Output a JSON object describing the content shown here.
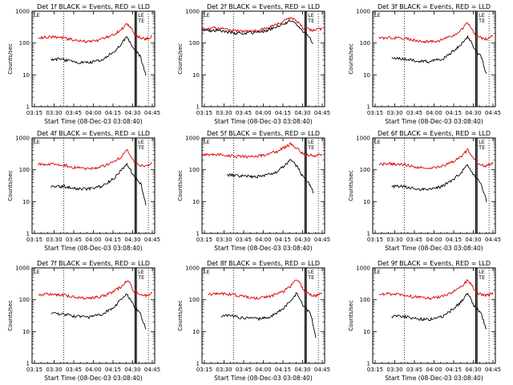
{
  "figure": {
    "x_tick_labels": [
      "03:15",
      "03:30",
      "03:45",
      "04:00",
      "04:15",
      "04:30",
      "04:45"
    ],
    "y_tick_labels": [
      "1",
      "10",
      "100",
      "1000"
    ],
    "colors": {
      "events": "#000000",
      "lld": "#dd0000"
    }
  },
  "chart_data": [
    {
      "type": "line",
      "title": "Det 1f BLACK = Events, RED = LLD",
      "xlabel": "Start Time (08-Dec-03 03:08:40)",
      "ylabel": "Counts/sec",
      "xlim": [
        0,
        97
      ],
      "ylim": [
        1,
        1000
      ],
      "yscale": "log",
      "x": [
        5,
        15,
        25,
        35,
        45,
        55,
        65,
        70,
        75,
        78,
        80,
        82,
        84,
        86,
        87,
        90,
        95
      ],
      "series": [
        {
          "name": "LLD",
          "color": "#dd0000",
          "values": [
            150,
            155,
            145,
            120,
            110,
            130,
            190,
            260,
            400,
            320,
            210,
            180,
            160,
            145,
            140,
            135,
            165
          ]
        },
        {
          "name": "Events",
          "color": "#000000",
          "values": [
            null,
            32,
            30,
            25,
            24,
            30,
            55,
            90,
            155,
            100,
            65,
            55,
            45,
            36,
            25,
            10,
            null
          ]
        }
      ],
      "markers": {
        "dotted_x": [
          25,
          92
        ],
        "solid_x": [
          81.5,
          82.5
        ],
        "labels": [
          "LE",
          "LE",
          "TE"
        ]
      }
    },
    {
      "type": "line",
      "title": "Det 2f BLACK = Events, RED = LLD",
      "xlabel": "Start Time (08-Dec-03 03:08:40)",
      "ylabel": "Counts/sec",
      "xlim": [
        0,
        97
      ],
      "ylim": [
        1,
        1000
      ],
      "yscale": "log",
      "x": [
        0,
        10,
        20,
        30,
        40,
        50,
        60,
        70,
        75,
        78,
        80,
        82,
        85,
        88,
        90,
        95
      ],
      "series": [
        {
          "name": "LLD",
          "color": "#dd0000",
          "values": [
            280,
            300,
            260,
            230,
            240,
            280,
            400,
            610,
            480,
            360,
            300,
            290,
            270,
            250,
            260,
            290
          ]
        },
        {
          "name": "Events",
          "color": "#000000",
          "values": [
            240,
            250,
            220,
            200,
            210,
            240,
            340,
            490,
            400,
            260,
            230,
            210,
            150,
            90,
            null,
            null
          ]
        }
      ],
      "markers": {
        "dotted_x": [
          25,
          92
        ],
        "solid_x": [
          81.5,
          82.5
        ],
        "labels": [
          "LE",
          "LE",
          "TE"
        ]
      }
    },
    {
      "type": "line",
      "title": "Det 3f BLACK = Events, RED = LLD",
      "xlabel": "Start Time (08-Dec-03 03:08:40)",
      "ylabel": "Counts/sec",
      "xlim": [
        0,
        97
      ],
      "ylim": [
        1,
        1000
      ],
      "yscale": "log",
      "x": [
        5,
        15,
        25,
        35,
        45,
        55,
        65,
        70,
        75,
        78,
        80,
        82,
        84,
        86,
        87,
        90,
        95
      ],
      "series": [
        {
          "name": "LLD",
          "color": "#dd0000",
          "values": [
            145,
            150,
            140,
            120,
            110,
            125,
            190,
            250,
            430,
            300,
            200,
            170,
            155,
            145,
            140,
            135,
            160
          ]
        },
        {
          "name": "Events",
          "color": "#000000",
          "values": [
            null,
            35,
            32,
            28,
            26,
            32,
            60,
            95,
            160,
            105,
            70,
            55,
            45,
            36,
            25,
            10,
            null
          ]
        }
      ],
      "markers": {
        "dotted_x": [
          25,
          92
        ],
        "solid_x": [
          81.5,
          82.5
        ],
        "labels": [
          "LE",
          "LE",
          "TE"
        ]
      }
    },
    {
      "type": "line",
      "title": "Det 4f BLACK = Events, RED = LLD",
      "xlabel": "Start Time (08-Dec-03 03:08:40)",
      "ylabel": "Counts/sec",
      "xlim": [
        0,
        97
      ],
      "ylim": [
        1,
        1000
      ],
      "yscale": "log",
      "x": [
        5,
        15,
        25,
        35,
        45,
        55,
        65,
        70,
        75,
        78,
        80,
        82,
        84,
        86,
        87,
        90,
        95
      ],
      "series": [
        {
          "name": "LLD",
          "color": "#dd0000",
          "values": [
            150,
            150,
            140,
            115,
            105,
            125,
            185,
            250,
            420,
            300,
            200,
            170,
            155,
            140,
            140,
            135,
            160
          ]
        },
        {
          "name": "Events",
          "color": "#000000",
          "values": [
            null,
            30,
            30,
            26,
            25,
            30,
            55,
            90,
            150,
            95,
            65,
            55,
            45,
            36,
            25,
            8,
            null
          ]
        }
      ],
      "markers": {
        "dotted_x": [
          25,
          92
        ],
        "solid_x": [
          81.5,
          82.5
        ],
        "labels": [
          "LE",
          "LE",
          "TE"
        ]
      }
    },
    {
      "type": "line",
      "title": "Det 5f BLACK = Events, RED = LLD",
      "xlabel": "Start Time (08-Dec-03 03:08:40)",
      "ylabel": "Counts/sec",
      "xlim": [
        0,
        97
      ],
      "ylim": [
        1,
        1000
      ],
      "yscale": "log",
      "x": [
        0,
        10,
        20,
        30,
        40,
        50,
        60,
        70,
        75,
        78,
        80,
        82,
        85,
        88,
        90,
        95
      ],
      "series": [
        {
          "name": "LLD",
          "color": "#dd0000",
          "values": [
            290,
            300,
            280,
            260,
            260,
            290,
            390,
            640,
            500,
            380,
            320,
            300,
            290,
            280,
            280,
            300
          ]
        },
        {
          "name": "Events",
          "color": "#000000",
          "values": [
            null,
            null,
            70,
            65,
            60,
            65,
            90,
            200,
            130,
            80,
            60,
            50,
            35,
            20,
            null,
            null
          ]
        }
      ],
      "markers": {
        "dotted_x": [
          25,
          92
        ],
        "solid_x": [
          81.5,
          82.5
        ],
        "labels": [
          "LE",
          "LE",
          "TE"
        ]
      }
    },
    {
      "type": "line",
      "title": "Det 6f BLACK = Events, RED = LLD",
      "xlabel": "Start Time (08-Dec-03 03:08:40)",
      "ylabel": "Counts/sec",
      "xlim": [
        0,
        97
      ],
      "ylim": [
        1,
        1000
      ],
      "yscale": "log",
      "x": [
        5,
        15,
        25,
        35,
        45,
        55,
        65,
        70,
        75,
        78,
        80,
        82,
        84,
        86,
        87,
        90,
        95
      ],
      "series": [
        {
          "name": "LLD",
          "color": "#dd0000",
          "values": [
            150,
            155,
            145,
            120,
            110,
            130,
            190,
            260,
            420,
            310,
            210,
            180,
            160,
            145,
            140,
            135,
            165
          ]
        },
        {
          "name": "Events",
          "color": "#000000",
          "values": [
            null,
            30,
            30,
            25,
            24,
            30,
            55,
            85,
            140,
            95,
            65,
            55,
            45,
            36,
            25,
            10,
            null
          ]
        }
      ],
      "markers": {
        "dotted_x": [
          25,
          92
        ],
        "solid_x": [
          81.5,
          82.5
        ],
        "labels": [
          "LE",
          "LE",
          "TE"
        ]
      }
    },
    {
      "type": "line",
      "title": "Det 7f BLACK = Events, RED = LLD",
      "xlabel": "Start Time (08-Dec-03 03:08:40)",
      "ylabel": "Counts/sec",
      "xlim": [
        0,
        97
      ],
      "ylim": [
        1,
        1000
      ],
      "yscale": "log",
      "x": [
        5,
        15,
        25,
        35,
        45,
        55,
        65,
        70,
        75,
        78,
        80,
        82,
        84,
        86,
        87,
        90,
        95
      ],
      "series": [
        {
          "name": "LLD",
          "color": "#dd0000",
          "values": [
            145,
            150,
            140,
            120,
            110,
            125,
            185,
            250,
            410,
            300,
            200,
            170,
            155,
            140,
            140,
            135,
            160
          ]
        },
        {
          "name": "Events",
          "color": "#000000",
          "values": [
            null,
            38,
            35,
            30,
            28,
            34,
            60,
            95,
            155,
            100,
            70,
            55,
            45,
            36,
            25,
            12,
            null
          ]
        }
      ],
      "markers": {
        "dotted_x": [
          25,
          92
        ],
        "solid_x": [
          81.5,
          82.5
        ],
        "labels": [
          "LE",
          "LE",
          "TE"
        ]
      }
    },
    {
      "type": "line",
      "title": "Det 8f BLACK = Events, RED = LLD",
      "xlabel": "Start Time (08-Dec-03 03:08:40)",
      "ylabel": "Counts/sec",
      "xlim": [
        0,
        97
      ],
      "ylim": [
        1,
        1000
      ],
      "yscale": "log",
      "x": [
        5,
        15,
        25,
        35,
        45,
        55,
        65,
        70,
        75,
        78,
        80,
        82,
        84,
        86,
        87,
        90,
        95
      ],
      "series": [
        {
          "name": "LLD",
          "color": "#dd0000",
          "values": [
            150,
            155,
            145,
            120,
            110,
            130,
            190,
            260,
            420,
            310,
            210,
            180,
            160,
            145,
            140,
            135,
            165
          ]
        },
        {
          "name": "Events",
          "color": "#000000",
          "values": [
            null,
            32,
            30,
            26,
            25,
            30,
            55,
            90,
            165,
            100,
            65,
            55,
            45,
            36,
            25,
            6,
            null
          ]
        }
      ],
      "markers": {
        "dotted_x": [
          25,
          92
        ],
        "solid_x": [
          81.5,
          82.5
        ],
        "labels": [
          "LE",
          "LE",
          "TE"
        ]
      }
    },
    {
      "type": "line",
      "title": "Det 9f BLACK = Events, RED = LLD",
      "xlabel": "Start Time (08-Dec-03 03:08:40)",
      "ylabel": "Counts/sec",
      "xlim": [
        0,
        97
      ],
      "ylim": [
        1,
        1000
      ],
      "yscale": "log",
      "x": [
        5,
        15,
        25,
        35,
        45,
        55,
        65,
        70,
        75,
        78,
        80,
        82,
        84,
        86,
        87,
        90,
        95
      ],
      "series": [
        {
          "name": "LLD",
          "color": "#dd0000",
          "values": [
            150,
            150,
            140,
            120,
            110,
            128,
            188,
            255,
            410,
            300,
            205,
            175,
            158,
            143,
            140,
            135,
            162
          ]
        },
        {
          "name": "Events",
          "color": "#000000",
          "values": [
            null,
            30,
            30,
            25,
            24,
            30,
            55,
            88,
            165,
            100,
            65,
            55,
            45,
            36,
            25,
            12,
            null
          ]
        }
      ],
      "markers": {
        "dotted_x": [
          25,
          92
        ],
        "solid_x": [
          81.5,
          82.5
        ],
        "labels": [
          "LE",
          "LE",
          "TE"
        ]
      }
    }
  ]
}
